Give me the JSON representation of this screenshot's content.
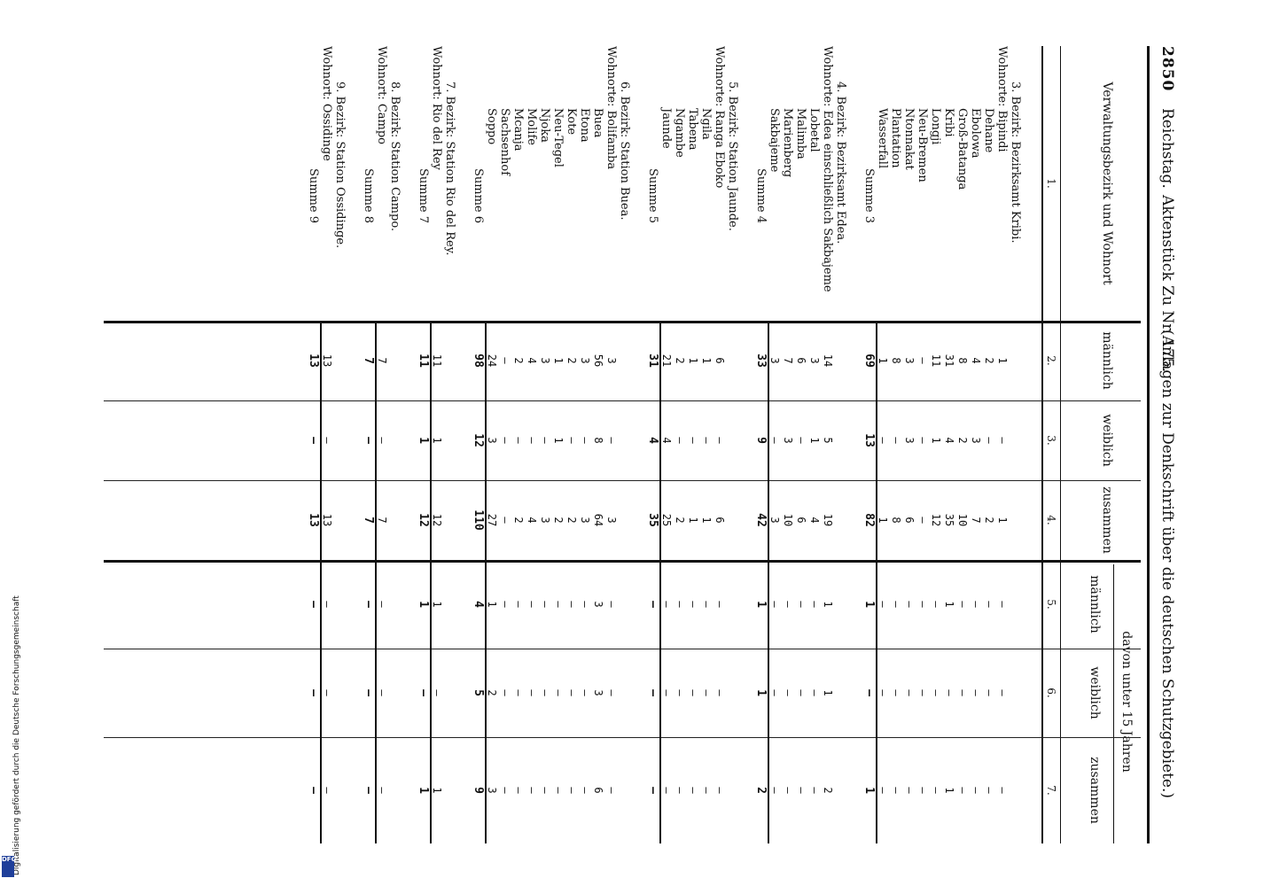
{
  "header": {
    "page_no": "2850",
    "title": "Reichstag.",
    "doc_ref": "Aktenstück Zu Nr. 175.",
    "subtitle": "(Anlagen zur Denkschrift über die deutschen Schutzgebiete.)"
  },
  "columns": {
    "col1": "Verwaltungsbezirk und Wohnort",
    "col2": "männlich",
    "col3": "weiblich",
    "col4": "zusammen",
    "group": "davon unter 15 Jahren",
    "col5": "männlich",
    "col6": "weiblich",
    "col7": "zusammen",
    "nums": [
      "1.",
      "2.",
      "3.",
      "4.",
      "5.",
      "6.",
      "7."
    ]
  },
  "rows": [
    {
      "type": "section",
      "label": "3. Bezirk: Bezirksamt Kribi."
    },
    {
      "type": "data",
      "label": "Wohnorte: Bipindi",
      "indent": false,
      "v": [
        "1",
        "—",
        "1",
        "—",
        "—",
        "—"
      ]
    },
    {
      "type": "data",
      "label": "Dehane",
      "indent": true,
      "v": [
        "2",
        "—",
        "2",
        "—",
        "—",
        "—"
      ]
    },
    {
      "type": "data",
      "label": "Ebolowa",
      "indent": true,
      "v": [
        "4",
        "3",
        "7",
        "—",
        "—",
        "—"
      ]
    },
    {
      "type": "data",
      "label": "Groß-Batanga",
      "indent": true,
      "v": [
        "8",
        "2",
        "10",
        "—",
        "—",
        "—"
      ]
    },
    {
      "type": "data",
      "label": "Kribi",
      "indent": true,
      "v": [
        "31",
        "4",
        "35",
        "1",
        "—",
        "1"
      ]
    },
    {
      "type": "data",
      "label": "Longji",
      "indent": true,
      "v": [
        "11",
        "1",
        "12",
        "—",
        "—",
        "—"
      ]
    },
    {
      "type": "data",
      "label": "Neu-Bremen",
      "indent": true,
      "v": [
        "—",
        "—",
        "—",
        "—",
        "—",
        "—"
      ]
    },
    {
      "type": "data",
      "label": "Ntonnakat",
      "indent": true,
      "v": [
        "3",
        "3",
        "6",
        "—",
        "—",
        "—"
      ]
    },
    {
      "type": "data",
      "label": "Plantation",
      "indent": true,
      "v": [
        "8",
        "—",
        "8",
        "—",
        "—",
        "—"
      ]
    },
    {
      "type": "data",
      "label": "Wasserfall",
      "indent": true,
      "v": [
        "1",
        "—",
        "1",
        "—",
        "—",
        "—"
      ]
    },
    {
      "type": "sum",
      "label": "Summe 3",
      "v": [
        "69",
        "13",
        "82",
        "1",
        "—",
        "1"
      ]
    },
    {
      "type": "section",
      "label": "4. Bezirk: Bezirksamt Edea."
    },
    {
      "type": "data",
      "label": "Wohnorte: Edea einschließlich Sakbajeme",
      "indent": false,
      "v": [
        "14",
        "5",
        "19",
        "1",
        "1",
        "2"
      ]
    },
    {
      "type": "data",
      "label": "Lobetal",
      "indent": true,
      "v": [
        "3",
        "1",
        "4",
        "—",
        "—",
        "—"
      ]
    },
    {
      "type": "data",
      "label": "Malimba",
      "indent": true,
      "v": [
        "6",
        "—",
        "6",
        "—",
        "—",
        "—"
      ]
    },
    {
      "type": "data",
      "label": "Marienberg",
      "indent": true,
      "v": [
        "7",
        "3",
        "10",
        "—",
        "—",
        "—"
      ]
    },
    {
      "type": "data",
      "label": "Sakbajeme",
      "indent": true,
      "v": [
        "3",
        "—",
        "3",
        "—",
        "—",
        "—"
      ]
    },
    {
      "type": "sum",
      "label": "Summe 4",
      "v": [
        "33",
        "9",
        "42",
        "1",
        "1",
        "2"
      ]
    },
    {
      "type": "section",
      "label": "5. Bezirk: Station Jaunde."
    },
    {
      "type": "data",
      "label": "Wohnorte: Ranga Eboko",
      "indent": false,
      "v": [
        "6",
        "—",
        "6",
        "—",
        "—",
        "—"
      ]
    },
    {
      "type": "data",
      "label": "Ngila",
      "indent": true,
      "v": [
        "1",
        "—",
        "1",
        "—",
        "—",
        "—"
      ]
    },
    {
      "type": "data",
      "label": "Tabena",
      "indent": true,
      "v": [
        "1",
        "—",
        "1",
        "—",
        "—",
        "—"
      ]
    },
    {
      "type": "data",
      "label": "Ngambe",
      "indent": true,
      "v": [
        "2",
        "—",
        "2",
        "—",
        "—",
        "—"
      ]
    },
    {
      "type": "data",
      "label": "Jaunde",
      "indent": true,
      "v": [
        "21",
        "4",
        "25",
        "—",
        "—",
        "—"
      ]
    },
    {
      "type": "sum",
      "label": "Summe 5",
      "v": [
        "31",
        "4",
        "35",
        "—",
        "—",
        "—"
      ]
    },
    {
      "type": "section",
      "label": "6. Bezirk: Station Buea."
    },
    {
      "type": "data",
      "label": "Wohnorte: Bolifamba",
      "indent": false,
      "v": [
        "3",
        "—",
        "3",
        "—",
        "—",
        "—"
      ]
    },
    {
      "type": "data",
      "label": "Buea",
      "indent": true,
      "v": [
        "56",
        "8",
        "64",
        "3",
        "3",
        "6"
      ]
    },
    {
      "type": "data",
      "label": "Etona",
      "indent": true,
      "v": [
        "3",
        "—",
        "3",
        "—",
        "—",
        "—"
      ]
    },
    {
      "type": "data",
      "label": "Kote",
      "indent": true,
      "v": [
        "2",
        "—",
        "2",
        "—",
        "—",
        "—"
      ]
    },
    {
      "type": "data",
      "label": "Neu-Tegel",
      "indent": true,
      "v": [
        "1",
        "1",
        "2",
        "—",
        "—",
        "—"
      ]
    },
    {
      "type": "data",
      "label": " Njoka",
      "indent": true,
      "v": [
        "3",
        "—",
        "3",
        "—",
        "—",
        "—"
      ]
    },
    {
      "type": "data",
      "label": "Molife",
      "indent": true,
      "v": [
        "4",
        "—",
        "4",
        "—",
        "—",
        "—"
      ]
    },
    {
      "type": "data",
      "label": "Mcanja",
      "indent": true,
      "v": [
        "2",
        "—",
        "2",
        "—",
        "—",
        "—"
      ]
    },
    {
      "type": "data",
      "label": "Sachsenhof",
      "indent": true,
      "v": [
        "—",
        "—",
        "—",
        "—",
        "—",
        "—"
      ]
    },
    {
      "type": "data",
      "label": "Soppo",
      "indent": true,
      "v": [
        "24",
        "3",
        "27",
        "1",
        "2",
        "3"
      ]
    },
    {
      "type": "sum",
      "label": "Summe 6",
      "v": [
        "98",
        "12",
        "110",
        "4",
        "5",
        "9"
      ]
    },
    {
      "type": "section",
      "label": "7. Bezirk: Station Rio del Rey."
    },
    {
      "type": "data",
      "label": "Wohnort: Rio del Rey",
      "indent": false,
      "v": [
        "11",
        "1",
        "12",
        "1",
        "—",
        "1"
      ]
    },
    {
      "type": "sum",
      "label": "Summe 7",
      "v": [
        "11",
        "1",
        "12",
        "1",
        "—",
        "1"
      ]
    },
    {
      "type": "section",
      "label": "8. Bezirk: Station Campo."
    },
    {
      "type": "data",
      "label": "Wohnort: Campo",
      "indent": false,
      "v": [
        "7",
        "—",
        "7",
        "—",
        "—",
        "—"
      ]
    },
    {
      "type": "sum",
      "label": "Summe 8",
      "v": [
        "7",
        "—",
        "7",
        "—",
        "—",
        "—"
      ]
    },
    {
      "type": "section",
      "label": "9. Bezirk: Station Ossidinge."
    },
    {
      "type": "data",
      "label": "Wohnort: Ossidinge",
      "indent": false,
      "v": [
        "13",
        "—",
        "13",
        "—",
        "—",
        "—"
      ]
    },
    {
      "type": "sum",
      "label": "Summe 9",
      "v": [
        "13",
        "—",
        "13",
        "—",
        "—",
        "—"
      ]
    }
  ],
  "sidenote": "Digitalisierung gefördert durch die Deutsche Forschungsgemeinschaft",
  "logo": "DFG"
}
